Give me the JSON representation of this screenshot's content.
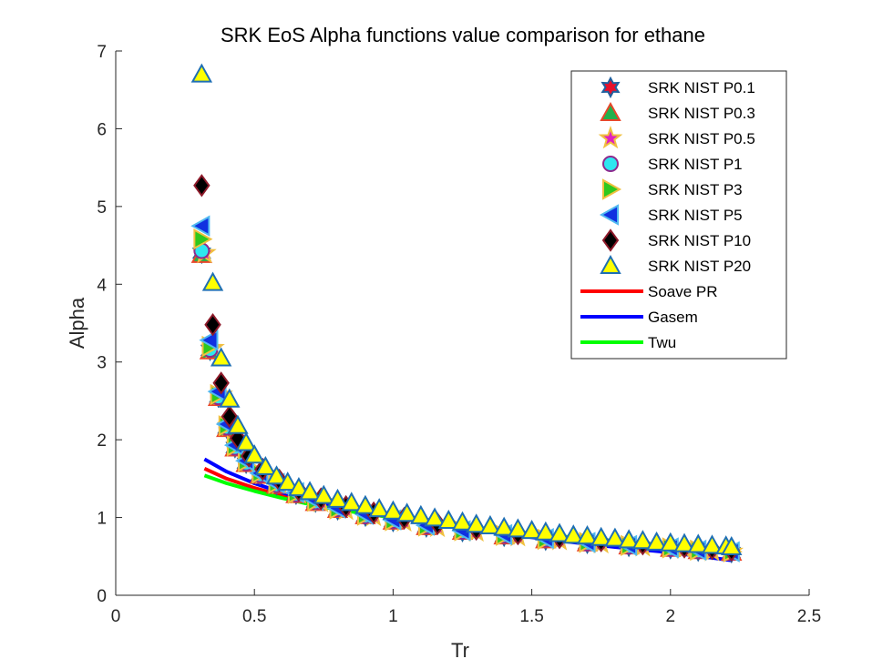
{
  "chart_data": {
    "type": "scatter",
    "title": "SRK EoS Alpha functions value comparison for ethane",
    "xlabel": "Tr",
    "ylabel": "Alpha",
    "xlim": [
      0,
      2.5
    ],
    "ylim": [
      0,
      7
    ],
    "x_ticks": [
      "0",
      "0.5",
      "1",
      "1.5",
      "2",
      "2.5"
    ],
    "y_ticks": [
      "0",
      "1",
      "2",
      "3",
      "4",
      "5",
      "6",
      "7"
    ],
    "grid": false,
    "legend_placement": "top-right",
    "series": [
      {
        "name": "SRK NIST P0.1",
        "kind": "marker",
        "marker": "hexagram",
        "fill": "#e8102a",
        "edge": "#1f5f9e",
        "x": [
          0.31,
          0.34,
          0.37,
          0.4,
          0.43,
          0.47,
          0.52,
          0.58,
          0.65,
          0.72,
          0.8,
          0.9,
          1.0,
          1.12,
          1.25,
          1.4,
          1.55,
          1.7,
          1.85,
          2.0,
          2.1,
          2.22
        ],
        "y": [
          4.4,
          3.15,
          2.55,
          2.15,
          1.9,
          1.7,
          1.55,
          1.42,
          1.3,
          1.2,
          1.1,
          1.02,
          0.95,
          0.88,
          0.82,
          0.76,
          0.71,
          0.67,
          0.63,
          0.6,
          0.57,
          0.55
        ]
      },
      {
        "name": "SRK NIST P0.3",
        "kind": "marker",
        "marker": "triangle-up",
        "fill": "#22b14c",
        "edge": "#e8462a",
        "x": [
          0.31,
          0.34,
          0.37,
          0.4,
          0.43,
          0.47,
          0.52,
          0.58,
          0.65,
          0.72,
          0.8,
          0.9,
          1.0,
          1.12,
          1.25,
          1.4,
          1.55,
          1.7,
          1.85,
          2.0,
          2.1,
          2.22
        ],
        "y": [
          4.38,
          3.14,
          2.54,
          2.14,
          1.89,
          1.69,
          1.54,
          1.41,
          1.29,
          1.19,
          1.1,
          1.02,
          0.95,
          0.88,
          0.82,
          0.76,
          0.71,
          0.67,
          0.63,
          0.6,
          0.57,
          0.55
        ]
      },
      {
        "name": "SRK NIST P0.5",
        "kind": "marker",
        "marker": "pentagram",
        "fill": "#e020c0",
        "edge": "#f0c040",
        "x": [
          0.32,
          0.35,
          0.38,
          0.41,
          0.44,
          0.48,
          0.53,
          0.59,
          0.66,
          0.74,
          0.83,
          0.93,
          1.04,
          1.16,
          1.3,
          1.45,
          1.6,
          1.75,
          1.9,
          2.05,
          2.15,
          2.22
        ],
        "y": [
          4.4,
          3.18,
          2.58,
          2.18,
          1.93,
          1.72,
          1.56,
          1.43,
          1.31,
          1.2,
          1.1,
          1.02,
          0.95,
          0.88,
          0.82,
          0.76,
          0.71,
          0.67,
          0.63,
          0.6,
          0.57,
          0.56
        ]
      },
      {
        "name": "SRK NIST P1",
        "kind": "marker",
        "marker": "circle",
        "fill": "#2ee6f0",
        "edge": "#8e2a8e",
        "x": [
          0.31,
          0.34,
          0.37,
          0.4,
          0.43,
          0.47,
          0.52,
          0.58,
          0.65,
          0.72,
          0.8,
          0.9,
          1.0,
          1.12,
          1.25,
          1.4,
          1.55,
          1.7,
          1.85,
          2.0,
          2.1,
          2.22
        ],
        "y": [
          4.43,
          3.16,
          2.55,
          2.16,
          1.9,
          1.7,
          1.55,
          1.42,
          1.3,
          1.2,
          1.11,
          1.02,
          0.96,
          0.89,
          0.82,
          0.77,
          0.72,
          0.67,
          0.63,
          0.6,
          0.57,
          0.55
        ]
      },
      {
        "name": "SRK NIST P3",
        "kind": "marker",
        "marker": "triangle-right",
        "fill": "#2ec81e",
        "edge": "#f0c040",
        "x": [
          0.31,
          0.34,
          0.37,
          0.4,
          0.43,
          0.47,
          0.52,
          0.58,
          0.65,
          0.72,
          0.8,
          0.9,
          1.0,
          1.12,
          1.25,
          1.4,
          1.55,
          1.7,
          1.85,
          2.0,
          2.1,
          2.22
        ],
        "y": [
          4.58,
          3.2,
          2.58,
          2.18,
          1.92,
          1.72,
          1.57,
          1.44,
          1.31,
          1.21,
          1.11,
          1.03,
          0.96,
          0.89,
          0.83,
          0.77,
          0.72,
          0.68,
          0.64,
          0.61,
          0.58,
          0.56
        ]
      },
      {
        "name": "SRK NIST P5",
        "kind": "marker",
        "marker": "triangle-left",
        "fill": "#1030e0",
        "edge": "#50b8f0",
        "x": [
          0.31,
          0.34,
          0.37,
          0.4,
          0.43,
          0.47,
          0.52,
          0.58,
          0.65,
          0.72,
          0.8,
          0.9,
          1.0,
          1.12,
          1.25,
          1.4,
          1.55,
          1.7,
          1.85,
          2.0,
          2.1,
          2.22
        ],
        "y": [
          4.75,
          3.28,
          2.62,
          2.2,
          1.93,
          1.73,
          1.57,
          1.44,
          1.32,
          1.22,
          1.12,
          1.04,
          0.97,
          0.9,
          0.83,
          0.78,
          0.73,
          0.68,
          0.64,
          0.61,
          0.58,
          0.56
        ]
      },
      {
        "name": "SRK NIST P10",
        "kind": "marker",
        "marker": "diamond",
        "fill": "#000000",
        "edge": "#8e1a2a",
        "x": [
          0.31,
          0.35,
          0.38,
          0.41,
          0.44,
          0.48,
          0.53,
          0.59,
          0.66,
          0.74,
          0.83,
          0.93,
          1.04,
          1.16,
          1.3,
          1.45,
          1.6,
          1.75,
          1.9,
          2.05,
          2.15,
          2.22
        ],
        "y": [
          5.27,
          3.48,
          2.73,
          2.3,
          2.02,
          1.79,
          1.62,
          1.48,
          1.35,
          1.24,
          1.14,
          1.06,
          0.99,
          0.92,
          0.85,
          0.79,
          0.74,
          0.7,
          0.66,
          0.62,
          0.6,
          0.58
        ]
      },
      {
        "name": "SRK NIST P20",
        "kind": "marker",
        "marker": "triangle-up",
        "fill": "#ffff00",
        "edge": "#1f6fb4",
        "x": [
          0.31,
          0.35,
          0.38,
          0.41,
          0.44,
          0.47,
          0.5,
          0.54,
          0.58,
          0.62,
          0.66,
          0.7,
          0.75,
          0.8,
          0.85,
          0.9,
          0.95,
          1.0,
          1.05,
          1.1,
          1.15,
          1.2,
          1.25,
          1.3,
          1.35,
          1.4,
          1.45,
          1.5,
          1.55,
          1.6,
          1.65,
          1.7,
          1.75,
          1.8,
          1.85,
          1.9,
          1.95,
          2.0,
          2.05,
          2.1,
          2.15,
          2.2,
          2.22
        ],
        "y": [
          6.7,
          4.02,
          3.05,
          2.52,
          2.18,
          1.96,
          1.8,
          1.65,
          1.53,
          1.45,
          1.38,
          1.33,
          1.28,
          1.23,
          1.19,
          1.15,
          1.11,
          1.08,
          1.05,
          1.02,
          0.99,
          0.96,
          0.94,
          0.91,
          0.89,
          0.87,
          0.85,
          0.83,
          0.81,
          0.79,
          0.77,
          0.76,
          0.74,
          0.73,
          0.71,
          0.7,
          0.68,
          0.67,
          0.66,
          0.65,
          0.64,
          0.63,
          0.62
        ]
      },
      {
        "name": "Soave PR",
        "kind": "line",
        "color": "#ff0000",
        "x": [
          0.32,
          0.4,
          0.5,
          0.6,
          0.7,
          0.8,
          0.9,
          1.0,
          1.2,
          1.4,
          1.6,
          1.8,
          2.0,
          2.22
        ],
        "y": [
          1.63,
          1.5,
          1.38,
          1.28,
          1.19,
          1.11,
          1.05,
          1.0,
          0.9,
          0.81,
          0.74,
          0.67,
          0.61,
          0.54
        ]
      },
      {
        "name": "Gasem",
        "kind": "line",
        "color": "#0000ff",
        "x": [
          0.32,
          0.4,
          0.5,
          0.6,
          0.7,
          0.8,
          0.9,
          1.0,
          1.2,
          1.4,
          1.6,
          1.8,
          2.0,
          2.22
        ],
        "y": [
          1.75,
          1.59,
          1.44,
          1.32,
          1.22,
          1.13,
          1.06,
          1.0,
          0.89,
          0.79,
          0.7,
          0.62,
          0.55,
          0.45
        ]
      },
      {
        "name": "Twu",
        "kind": "line",
        "color": "#00ff00",
        "x": [
          0.32,
          0.4,
          0.5,
          0.6,
          0.7,
          0.8,
          0.9,
          1.0,
          1.2,
          1.4,
          1.6,
          1.8,
          2.0,
          2.22
        ],
        "y": [
          1.54,
          1.44,
          1.34,
          1.25,
          1.17,
          1.1,
          1.05,
          1.0,
          0.91,
          0.83,
          0.76,
          0.7,
          0.64,
          0.58
        ]
      }
    ]
  }
}
